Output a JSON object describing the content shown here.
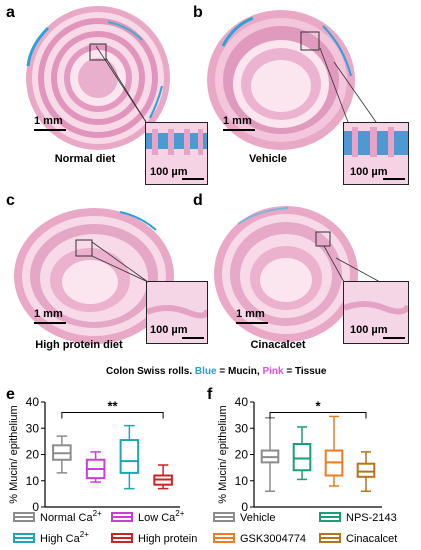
{
  "panels": {
    "a": {
      "letter": "a",
      "title": "Normal diet",
      "scale_main": "1 mm",
      "scale_inset": "100 µm"
    },
    "b": {
      "letter": "b",
      "title": "Vehicle",
      "scale_main": "1 mm",
      "scale_inset": "100 µm"
    },
    "c": {
      "letter": "c",
      "title": "High protein diet",
      "scale_main": "1 mm",
      "scale_inset": "100 µm"
    },
    "d": {
      "letter": "d",
      "title": "Cinacalcet",
      "scale_main": "1 mm",
      "scale_inset": "100 µm"
    }
  },
  "caption": {
    "prefix": "Colon Swiss rolls.",
    "blue": "Blue",
    "mid": " = Mucin, ",
    "pink": "Pink",
    "suffix": " = Tissue",
    "colors": {
      "blue": "#2e9bd6",
      "pink": "#e64ce0"
    }
  },
  "chart_data": [
    {
      "panel": "e",
      "type": "boxplot",
      "ylabel": "% Mucin/ epithelium",
      "ylim": [
        0,
        40
      ],
      "yticks": [
        0,
        10,
        20,
        30,
        40
      ],
      "significance": "**",
      "series": [
        {
          "name": "Normal Ca2+",
          "color": "#8c8c8c",
          "min": 13,
          "q1": 18,
          "median": 20.5,
          "q3": 23.5,
          "max": 27
        },
        {
          "name": "Low Ca2+",
          "color": "#c83fd6",
          "min": 9.5,
          "q1": 11,
          "median": 14.5,
          "q3": 18,
          "max": 21
        },
        {
          "name": "High Ca2+",
          "color": "#1aa7b5",
          "min": 7,
          "q1": 13,
          "median": 17.5,
          "q3": 25.5,
          "max": 31
        },
        {
          "name": "High protein",
          "color": "#cc2222",
          "min": 7,
          "q1": 8.5,
          "median": 10.5,
          "q3": 12,
          "max": 16
        }
      ],
      "legend": [
        {
          "text": "Normal Ca",
          "sup": "2+",
          "color": "#8c8c8c"
        },
        {
          "text": "Low Ca",
          "sup": "2+",
          "color": "#c83fd6"
        },
        {
          "text": "High Ca",
          "sup": "2+",
          "color": "#1aa7b5"
        },
        {
          "text": "High protein",
          "sup": "",
          "color": "#cc2222"
        }
      ]
    },
    {
      "panel": "f",
      "type": "boxplot",
      "ylabel": "% Mucin/ epithelium",
      "ylim": [
        0,
        40
      ],
      "yticks": [
        0,
        10,
        20,
        30,
        40
      ],
      "significance": "*",
      "series": [
        {
          "name": "Vehicle",
          "color": "#8c8c8c",
          "min": 6,
          "q1": 17,
          "median": 19,
          "q3": 21.5,
          "max": 34
        },
        {
          "name": "NPS-2143",
          "color": "#1a9e77",
          "min": 10.5,
          "q1": 14,
          "median": 18.5,
          "q3": 24,
          "max": 30.5
        },
        {
          "name": "GSK3004774",
          "color": "#ee7b24",
          "min": 8,
          "q1": 12,
          "median": 17,
          "q3": 21.5,
          "max": 34.5
        },
        {
          "name": "Cinacalcet",
          "color": "#b5731b",
          "min": 6,
          "q1": 11.5,
          "median": 13.5,
          "q3": 16.5,
          "max": 21
        }
      ],
      "legend": [
        {
          "text": "Vehicle",
          "sup": "",
          "color": "#8c8c8c"
        },
        {
          "text": "NPS-2143",
          "sup": "",
          "color": "#1a9e77"
        },
        {
          "text": "GSK3004774",
          "sup": "",
          "color": "#ee7b24"
        },
        {
          "text": "Cinacalcet",
          "sup": "",
          "color": "#b5731b"
        }
      ]
    }
  ]
}
